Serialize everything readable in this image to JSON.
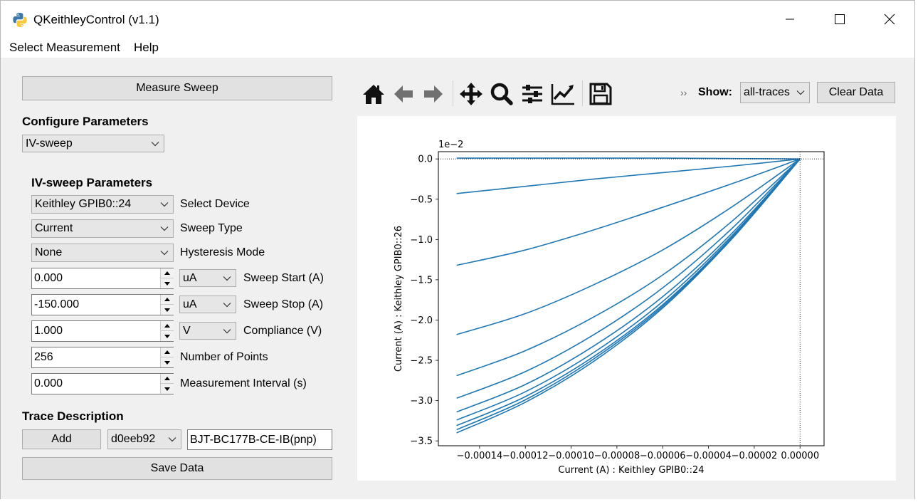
{
  "window": {
    "title": "QKeithleyControl (v1.1)"
  },
  "menu": {
    "items": [
      "Select Measurement",
      "Help"
    ]
  },
  "left": {
    "measure_button": "Measure Sweep",
    "configure_heading": "Configure Parameters",
    "mode_select": "IV-sweep",
    "params_heading": "IV-sweep Parameters",
    "device_select": "Keithley GPIB0::24",
    "device_label": "Select Device",
    "sweep_type_select": "Current",
    "sweep_type_label": "Sweep Type",
    "hysteresis_select": "None",
    "hysteresis_label": "Hysteresis Mode",
    "sweep_start_value": "0.000",
    "sweep_start_unit": "uA",
    "sweep_start_label": "Sweep Start (A)",
    "sweep_stop_value": "-150.000",
    "sweep_stop_unit": "uA",
    "sweep_stop_label": "Sweep Stop (A)",
    "compliance_value": "1.000",
    "compliance_unit": "V",
    "compliance_label": "Compliance (V)",
    "points_value": "256",
    "points_label": "Number of Points",
    "interval_value": "0.000",
    "interval_label": "Measurement Interval (s)",
    "trace_heading": "Trace Description",
    "add_button": "Add",
    "trace_id_select": "d0eeb92",
    "trace_description": "BJT-BC177B-CE-IB(pnp)",
    "save_button": "Save Data"
  },
  "toolbar": {
    "icons": [
      "home-icon",
      "back-arrow-icon",
      "forward-arrow-icon",
      "pan-icon",
      "zoom-icon",
      "configure-subplots-icon",
      "edit-axis-icon",
      "save-figure-icon"
    ],
    "more_glyph": "››",
    "show_label": "Show:",
    "show_select": "all-traces",
    "clear_button": "Clear Data"
  },
  "chart_data": {
    "type": "line",
    "xlabel": "Current (A) : Keithley GPIB0::24",
    "ylabel": "Current (A) : Keithley GPIB0::26",
    "y_offset_text": "1e−2",
    "xlim": [
      -0.000158,
      1.05e-05
    ],
    "ylim": [
      -3.56,
      0.09
    ],
    "x_ticks": [
      -0.00014,
      -0.00012,
      -0.0001,
      -8e-05,
      -6e-05,
      -4e-05,
      -2e-05,
      0.0
    ],
    "x_tick_labels": [
      "−0.00014",
      "−0.00012",
      "−0.00010",
      "−0.00008",
      "−0.00006",
      "−0.00004",
      "−0.00002",
      "0.00000"
    ],
    "y_ticks": [
      0.0,
      -0.5,
      -1.0,
      -1.5,
      -2.0,
      -2.5,
      -3.0,
      -3.5
    ],
    "y_tick_labels": [
      "0.0",
      "−0.5",
      "−1.0",
      "−1.5",
      "−2.0",
      "−2.5",
      "−3.0",
      "−3.5"
    ],
    "color": "#1f77b4",
    "zero_lines": true,
    "grid": false,
    "series": [
      {
        "x": [
          -0.00015,
          -0.00012,
          -9e-05,
          -6e-05,
          -3e-05,
          0.0
        ],
        "values": [
          0.01,
          0.01,
          0.01,
          0.01,
          0.005,
          0.0
        ]
      },
      {
        "x": [
          -0.00015,
          -0.00012,
          -9e-05,
          -6e-05,
          -3e-05,
          0.0
        ],
        "values": [
          -0.43,
          -0.34,
          -0.25,
          -0.17,
          -0.09,
          0.0
        ]
      },
      {
        "x": [
          -0.00015,
          -0.00012,
          -9e-05,
          -6e-05,
          -3e-05,
          0.0
        ],
        "values": [
          -1.32,
          -1.13,
          -0.88,
          -0.6,
          -0.31,
          0.0
        ]
      },
      {
        "x": [
          -0.00015,
          -0.00012,
          -9e-05,
          -6e-05,
          -3e-05,
          0.0
        ],
        "values": [
          -2.18,
          -1.92,
          -1.56,
          -1.13,
          -0.6,
          0.0
        ]
      },
      {
        "x": [
          -0.00015,
          -0.00012,
          -9e-05,
          -6e-05,
          -3e-05,
          0.0
        ],
        "values": [
          -2.69,
          -2.38,
          -1.96,
          -1.44,
          -0.78,
          0.0
        ]
      },
      {
        "x": [
          -0.00015,
          -0.00012,
          -9e-05,
          -6e-05,
          -3e-05,
          0.0
        ],
        "values": [
          -2.97,
          -2.64,
          -2.18,
          -1.6,
          -0.87,
          0.0
        ]
      },
      {
        "x": [
          -0.00015,
          -0.00012,
          -9e-05,
          -6e-05,
          -3e-05,
          0.0
        ],
        "values": [
          -3.14,
          -2.8,
          -2.32,
          -1.71,
          -0.93,
          0.0
        ]
      },
      {
        "x": [
          -0.00015,
          -0.00012,
          -9e-05,
          -6e-05,
          -3e-05,
          0.0
        ],
        "values": [
          -3.24,
          -2.89,
          -2.4,
          -1.77,
          -0.96,
          0.0
        ]
      },
      {
        "x": [
          -0.00015,
          -0.00012,
          -9e-05,
          -6e-05,
          -3e-05,
          0.0
        ],
        "values": [
          -3.31,
          -2.95,
          -2.45,
          -1.81,
          -0.98,
          0.0
        ]
      },
      {
        "x": [
          -0.00015,
          -0.00012,
          -9e-05,
          -6e-05,
          -3e-05,
          0.0
        ],
        "values": [
          -3.36,
          -2.99,
          -2.48,
          -1.83,
          -0.99,
          0.0
        ]
      },
      {
        "x": [
          -0.00015,
          -0.00012,
          -9e-05,
          -6e-05,
          -3e-05,
          0.0
        ],
        "values": [
          -3.4,
          -3.02,
          -2.51,
          -1.85,
          -1.0,
          0.0
        ]
      }
    ]
  }
}
